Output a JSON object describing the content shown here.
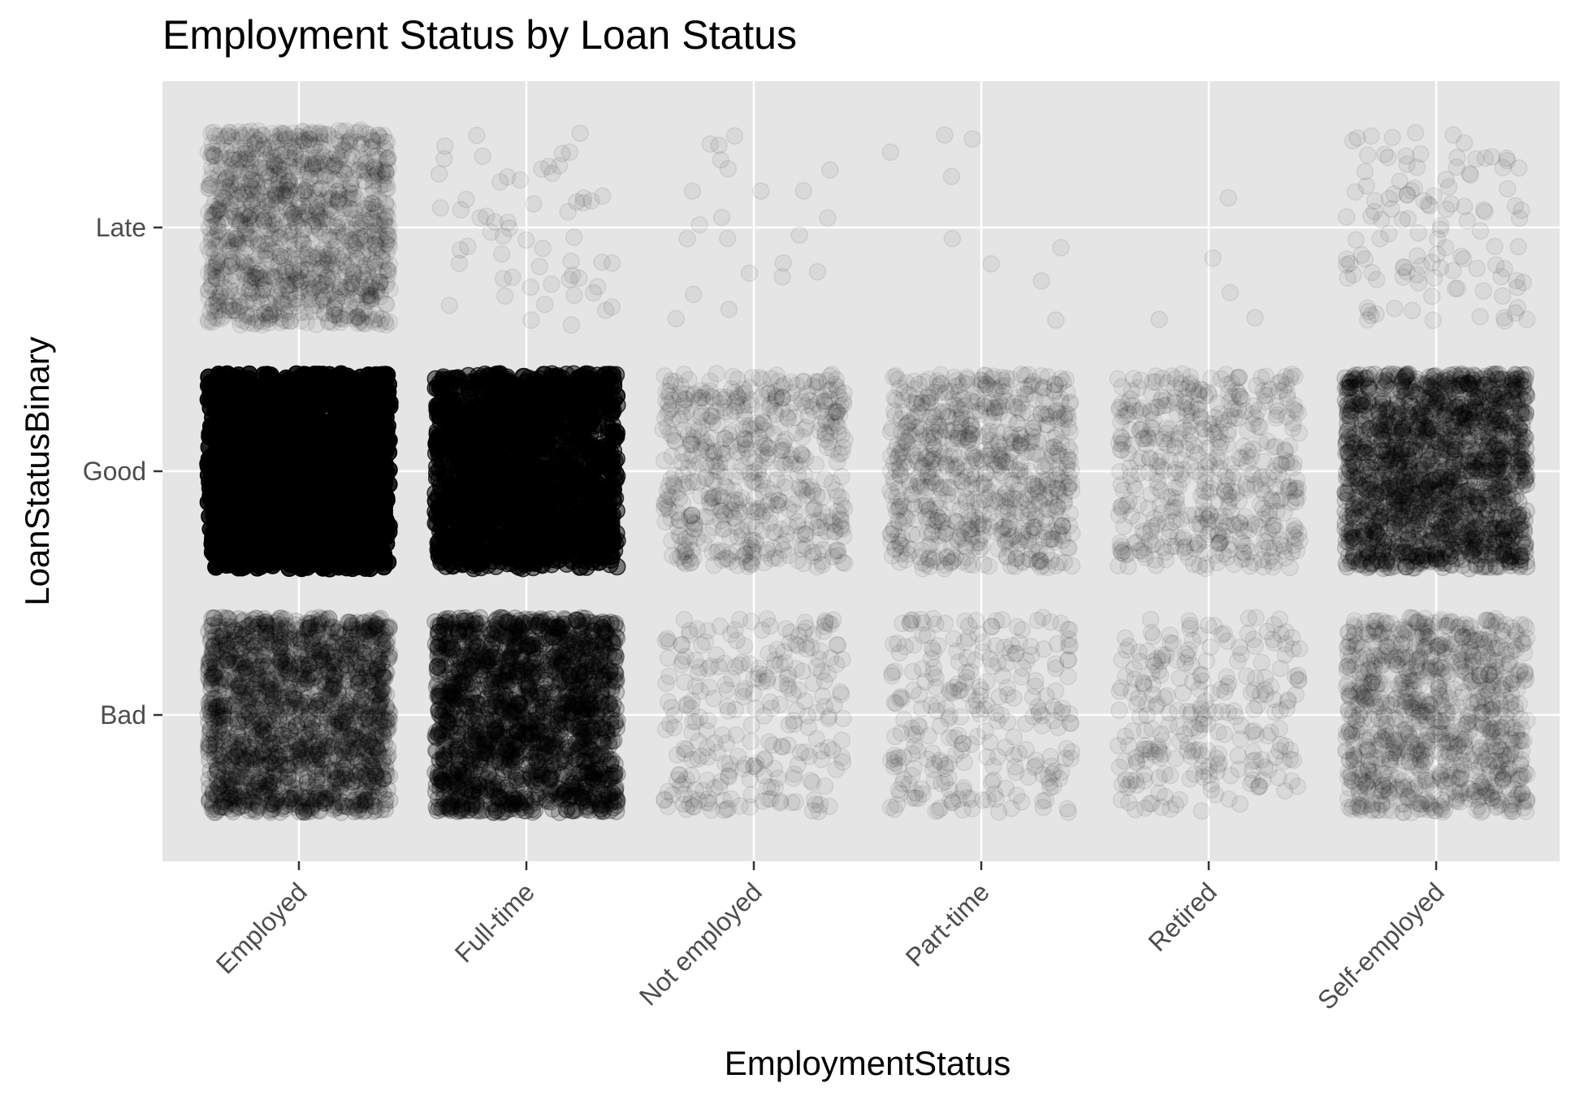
{
  "chart_data": {
    "type": "scatter",
    "title": "Employment Status by Loan Status",
    "xlabel": "EmploymentStatus",
    "ylabel": "LoanStatusBinary",
    "x_categories": [
      "Employed",
      "Full-time",
      "Not employed",
      "Part-time",
      "Retired",
      "Self-employed"
    ],
    "y_categories": [
      "Bad",
      "Good",
      "Late"
    ],
    "jitter": true,
    "point_alpha": 0.05,
    "grid": true,
    "legend": "none",
    "panel_background": "#e5e5e5",
    "grid_color": "#ffffff",
    "point_color": "#000000",
    "cell_counts": [
      {
        "x": "Employed",
        "y": "Good",
        "n": 60000
      },
      {
        "x": "Employed",
        "y": "Bad",
        "n": 3200
      },
      {
        "x": "Employed",
        "y": "Late",
        "n": 1200
      },
      {
        "x": "Full-time",
        "y": "Good",
        "n": 20000
      },
      {
        "x": "Full-time",
        "y": "Bad",
        "n": 5500
      },
      {
        "x": "Full-time",
        "y": "Late",
        "n": 60
      },
      {
        "x": "Not employed",
        "y": "Good",
        "n": 560
      },
      {
        "x": "Not employed",
        "y": "Bad",
        "n": 260
      },
      {
        "x": "Not employed",
        "y": "Late",
        "n": 22
      },
      {
        "x": "Part-time",
        "y": "Good",
        "n": 750
      },
      {
        "x": "Part-time",
        "y": "Bad",
        "n": 270
      },
      {
        "x": "Part-time",
        "y": "Late",
        "n": 9
      },
      {
        "x": "Retired",
        "y": "Good",
        "n": 500
      },
      {
        "x": "Retired",
        "y": "Bad",
        "n": 260
      },
      {
        "x": "Retired",
        "y": "Late",
        "n": 5
      },
      {
        "x": "Self-employed",
        "y": "Good",
        "n": 3500
      },
      {
        "x": "Self-employed",
        "y": "Bad",
        "n": 1000
      },
      {
        "x": "Self-employed",
        "y": "Late",
        "n": 120
      }
    ]
  }
}
